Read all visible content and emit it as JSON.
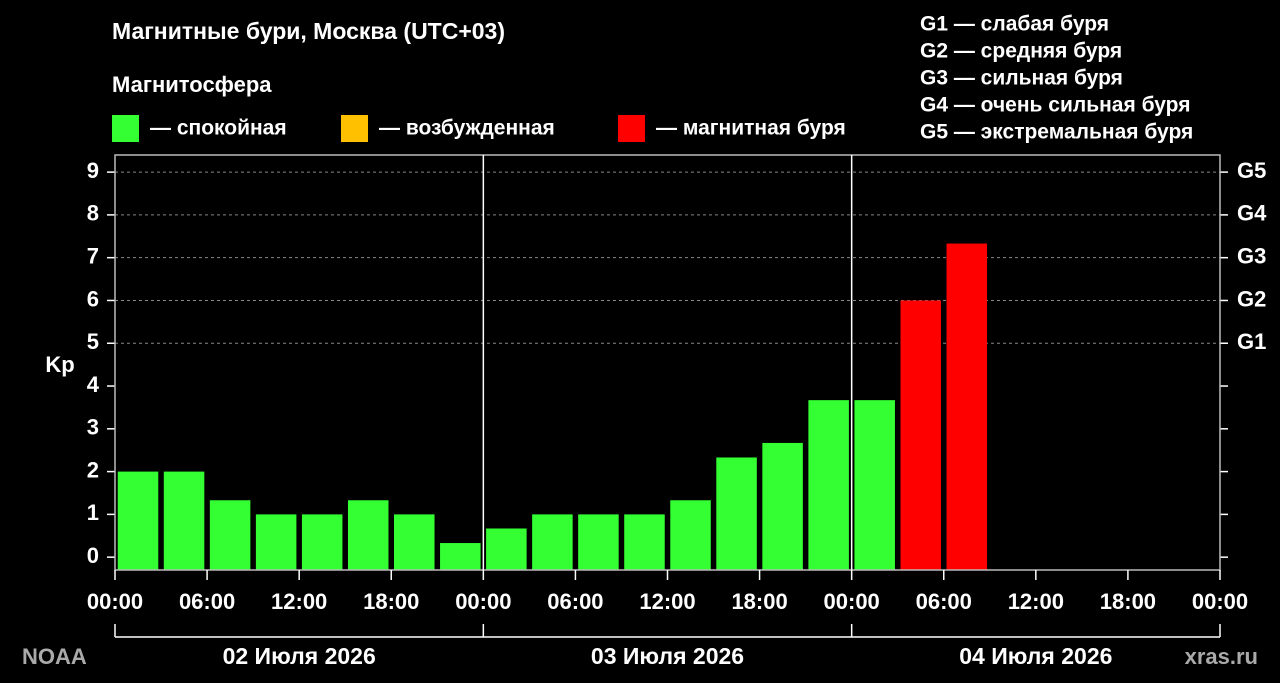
{
  "chart_data": {
    "type": "bar",
    "title": "Магнитные бури, Москва (UTC+03)",
    "legend_title": "Магнитосфера",
    "legend": [
      {
        "label": "— спокойная",
        "color": "#33ff33"
      },
      {
        "label": "— возбужденная",
        "color": "#ffc000"
      },
      {
        "label": "— магнитная буря",
        "color": "#ff0000"
      }
    ],
    "scale_notes": [
      "G1 — слабая буря",
      "G2 — средняя буря",
      "G3 — сильная буря",
      "G4 — очень сильная буря",
      "G5 — экстремальная буря"
    ],
    "y_label": "Kp",
    "x": [
      1.5,
      4.5,
      7.5,
      10.5,
      13.5,
      16.5,
      19.5,
      22.5,
      25.5,
      28.5,
      31.5,
      34.5,
      37.5,
      40.5,
      43.5,
      46.5,
      49.5,
      52.5,
      55.5
    ],
    "values": [
      2,
      2,
      1.33,
      1,
      1,
      1.33,
      1,
      0.33,
      0.67,
      1,
      1,
      1,
      1.33,
      2.33,
      2.67,
      3.67,
      3.67,
      6,
      7.33
    ],
    "colors": [
      "#33ff33",
      "#33ff33",
      "#33ff33",
      "#33ff33",
      "#33ff33",
      "#33ff33",
      "#33ff33",
      "#33ff33",
      "#33ff33",
      "#33ff33",
      "#33ff33",
      "#33ff33",
      "#33ff33",
      "#33ff33",
      "#33ff33",
      "#33ff33",
      "#33ff33",
      "#ff0000",
      "#ff0000"
    ],
    "xlim": [
      0,
      72
    ],
    "xticks": [
      {
        "value": 0,
        "label": "00:00"
      },
      {
        "value": 6,
        "label": "06:00"
      },
      {
        "value": 12,
        "label": "12:00"
      },
      {
        "value": 18,
        "label": "18:00"
      },
      {
        "value": 24,
        "label": "00:00"
      },
      {
        "value": 30,
        "label": "06:00"
      },
      {
        "value": 36,
        "label": "12:00"
      },
      {
        "value": 42,
        "label": "18:00"
      },
      {
        "value": 48,
        "label": "00:00"
      },
      {
        "value": 54,
        "label": "06:00"
      },
      {
        "value": 60,
        "label": "12:00"
      },
      {
        "value": 66,
        "label": "18:00"
      },
      {
        "value": 72,
        "label": "00:00"
      }
    ],
    "days": [
      "02 Июля 2026",
      "03 Июля 2026",
      "04 Июля 2026"
    ],
    "ylim": [
      -0.3,
      9.4
    ],
    "yticks": [
      0,
      1,
      2,
      3,
      4,
      5,
      6,
      7,
      8,
      9
    ],
    "y2lim": [
      -0.3,
      9.4
    ],
    "y2ticks": [
      {
        "value": 5,
        "label": "G1"
      },
      {
        "value": 6,
        "label": "G2"
      },
      {
        "value": 7,
        "label": "G3"
      },
      {
        "value": 8,
        "label": "G4"
      },
      {
        "value": 9,
        "label": "G5"
      }
    ],
    "grid": true,
    "source_left": "NOAA",
    "source_right": "xras.ru"
  }
}
